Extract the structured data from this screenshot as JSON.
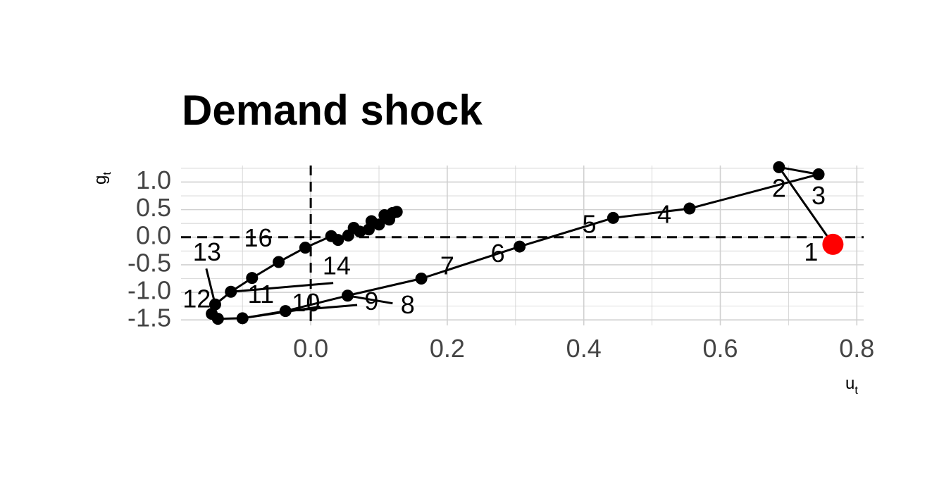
{
  "chart_data": {
    "type": "scatter",
    "title": "Demand shock",
    "xlabel": {
      "main": "u",
      "sub": "t"
    },
    "ylabel": {
      "main": "g",
      "sub": "t"
    },
    "xlim": [
      -0.19,
      0.81
    ],
    "ylim": [
      -1.6,
      1.3
    ],
    "x_ticks": [
      0.0,
      0.2,
      0.4,
      0.6,
      0.8
    ],
    "x_tick_labels": [
      "0.0",
      "0.2",
      "0.4",
      "0.6",
      "0.8"
    ],
    "y_ticks": [
      -1.5,
      -1.0,
      -0.5,
      0.0,
      0.5,
      1.0
    ],
    "y_tick_labels": [
      "-1.5",
      "-1.0",
      "-0.5",
      "0.0",
      "0.5",
      "1.0"
    ],
    "grid": true,
    "reference_lines": {
      "x": 0,
      "y": 0,
      "style": "dashed"
    },
    "colors": {
      "points": "#000000",
      "highlight": "#ff0000",
      "grid": "#d0d0d0"
    },
    "points": [
      {
        "period": 1,
        "x": 0.765,
        "y": -0.13
      },
      {
        "period": 2,
        "x": 0.686,
        "y": 1.27
      },
      {
        "period": 3,
        "x": 0.744,
        "y": 1.14
      },
      {
        "period": 4,
        "x": 0.555,
        "y": 0.52
      },
      {
        "period": 5,
        "x": 0.443,
        "y": 0.35
      },
      {
        "period": 6,
        "x": 0.306,
        "y": -0.17
      },
      {
        "period": 7,
        "x": 0.162,
        "y": -0.75
      },
      {
        "period": 8,
        "x": 0.054,
        "y": -1.06
      },
      {
        "period": 9,
        "x": -0.037,
        "y": -1.34
      },
      {
        "period": 10,
        "x": -0.1,
        "y": -1.47
      },
      {
        "period": 11,
        "x": -0.136,
        "y": -1.48
      },
      {
        "period": 12,
        "x": -0.145,
        "y": -1.39
      },
      {
        "period": 13,
        "x": -0.14,
        "y": -1.22
      },
      {
        "period": 14,
        "x": -0.117,
        "y": -0.99
      },
      {
        "period": 15,
        "x": -0.086,
        "y": -0.74
      },
      {
        "period": 16,
        "x": -0.047,
        "y": -0.45
      },
      {
        "period": 17,
        "x": -0.008,
        "y": -0.19
      },
      {
        "period": 18,
        "x": 0.03,
        "y": 0.02
      },
      {
        "period": 19,
        "x": 0.04,
        "y": -0.05
      },
      {
        "period": 20,
        "x": 0.055,
        "y": 0.03
      },
      {
        "period": 21,
        "x": 0.063,
        "y": 0.17
      },
      {
        "period": 22,
        "x": 0.072,
        "y": 0.1
      },
      {
        "period": 23,
        "x": 0.085,
        "y": 0.14
      },
      {
        "period": 24,
        "x": 0.089,
        "y": 0.29
      },
      {
        "period": 25,
        "x": 0.1,
        "y": 0.23
      },
      {
        "period": 26,
        "x": 0.108,
        "y": 0.4
      },
      {
        "period": 27,
        "x": 0.115,
        "y": 0.32
      },
      {
        "period": 28,
        "x": 0.12,
        "y": 0.44
      },
      {
        "period": 29,
        "x": 0.126,
        "y": 0.46
      }
    ],
    "labels": [
      {
        "text": "1",
        "point": 1,
        "label_x": 0.733,
        "label_y": -0.3
      },
      {
        "text": "2",
        "point": 2,
        "label_x": 0.686,
        "label_y": 0.85
      },
      {
        "text": "3",
        "point": 3,
        "label_x": 0.744,
        "label_y": 0.72
      },
      {
        "text": "4",
        "point": 4,
        "label_x": 0.518,
        "label_y": 0.38
      },
      {
        "text": "5",
        "point": 5,
        "label_x": 0.408,
        "label_y": 0.2
      },
      {
        "text": "6",
        "point": 6,
        "label_x": 0.274,
        "label_y": -0.33
      },
      {
        "text": "7",
        "point": 7,
        "label_x": 0.2,
        "label_y": -0.55
      },
      {
        "text": "8",
        "point": 8,
        "label_x": 0.142,
        "label_y": -1.26
      },
      {
        "text": "9",
        "point": 9,
        "label_x": 0.089,
        "label_y": -1.2
      },
      {
        "text": "10",
        "point": 10,
        "label_x": -0.007,
        "label_y": -1.22
      },
      {
        "text": "11",
        "point": 11,
        "label_x": -0.073,
        "label_y": -1.07
      },
      {
        "text": "12",
        "point": 12,
        "label_x": -0.167,
        "label_y": -1.15
      },
      {
        "text": "13",
        "point": 13,
        "label_x": -0.152,
        "label_y": -0.3
      },
      {
        "text": "14",
        "point": 14,
        "label_x": 0.038,
        "label_y": -0.55
      },
      {
        "text": "16",
        "point": 16,
        "label_x": -0.077,
        "label_y": -0.05
      }
    ],
    "label_leaders": [
      {
        "point": 9,
        "to_x": 0.068,
        "to_y": -1.23
      },
      {
        "point": 10,
        "to_x": 0.014,
        "to_y": -1.26
      },
      {
        "point": 8,
        "to_x": 0.12,
        "to_y": -1.2
      },
      {
        "point": 13,
        "to_x": -0.153,
        "to_y": -0.57
      },
      {
        "point": 14,
        "to_x": 0.033,
        "to_y": -0.83
      }
    ]
  }
}
